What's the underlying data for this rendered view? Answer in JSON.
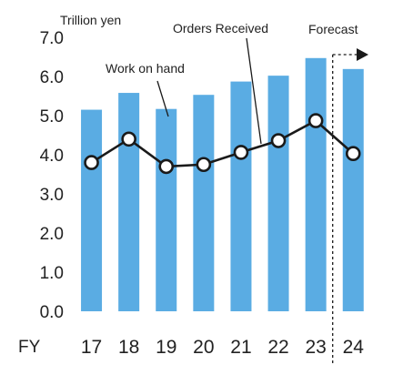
{
  "chart_data": {
    "type": "bar",
    "unit_label": "Trillion yen",
    "x_axis_label": "FY",
    "categories": [
      "17",
      "18",
      "19",
      "20",
      "21",
      "22",
      "23",
      "24"
    ],
    "ylim": [
      0,
      7
    ],
    "yticks": [
      "0.0",
      "1.0",
      "2.0",
      "3.0",
      "4.0",
      "5.0",
      "6.0",
      "7.0"
    ],
    "grid": false,
    "legend": "none",
    "series": [
      {
        "name": "Orders Received",
        "type": "bar",
        "color": "#5aace3",
        "values": [
          5.15,
          5.58,
          5.17,
          5.53,
          5.87,
          6.02,
          6.47,
          6.19
        ]
      },
      {
        "name": "Work on hand",
        "type": "line",
        "color": "#1a1a1a",
        "marker_fill": "#ffffff",
        "values": [
          3.8,
          4.4,
          3.7,
          3.75,
          4.06,
          4.36,
          4.87,
          4.03
        ]
      }
    ],
    "annotations": {
      "forecast_label": "Forecast",
      "forecast_from_index": 7
    }
  }
}
